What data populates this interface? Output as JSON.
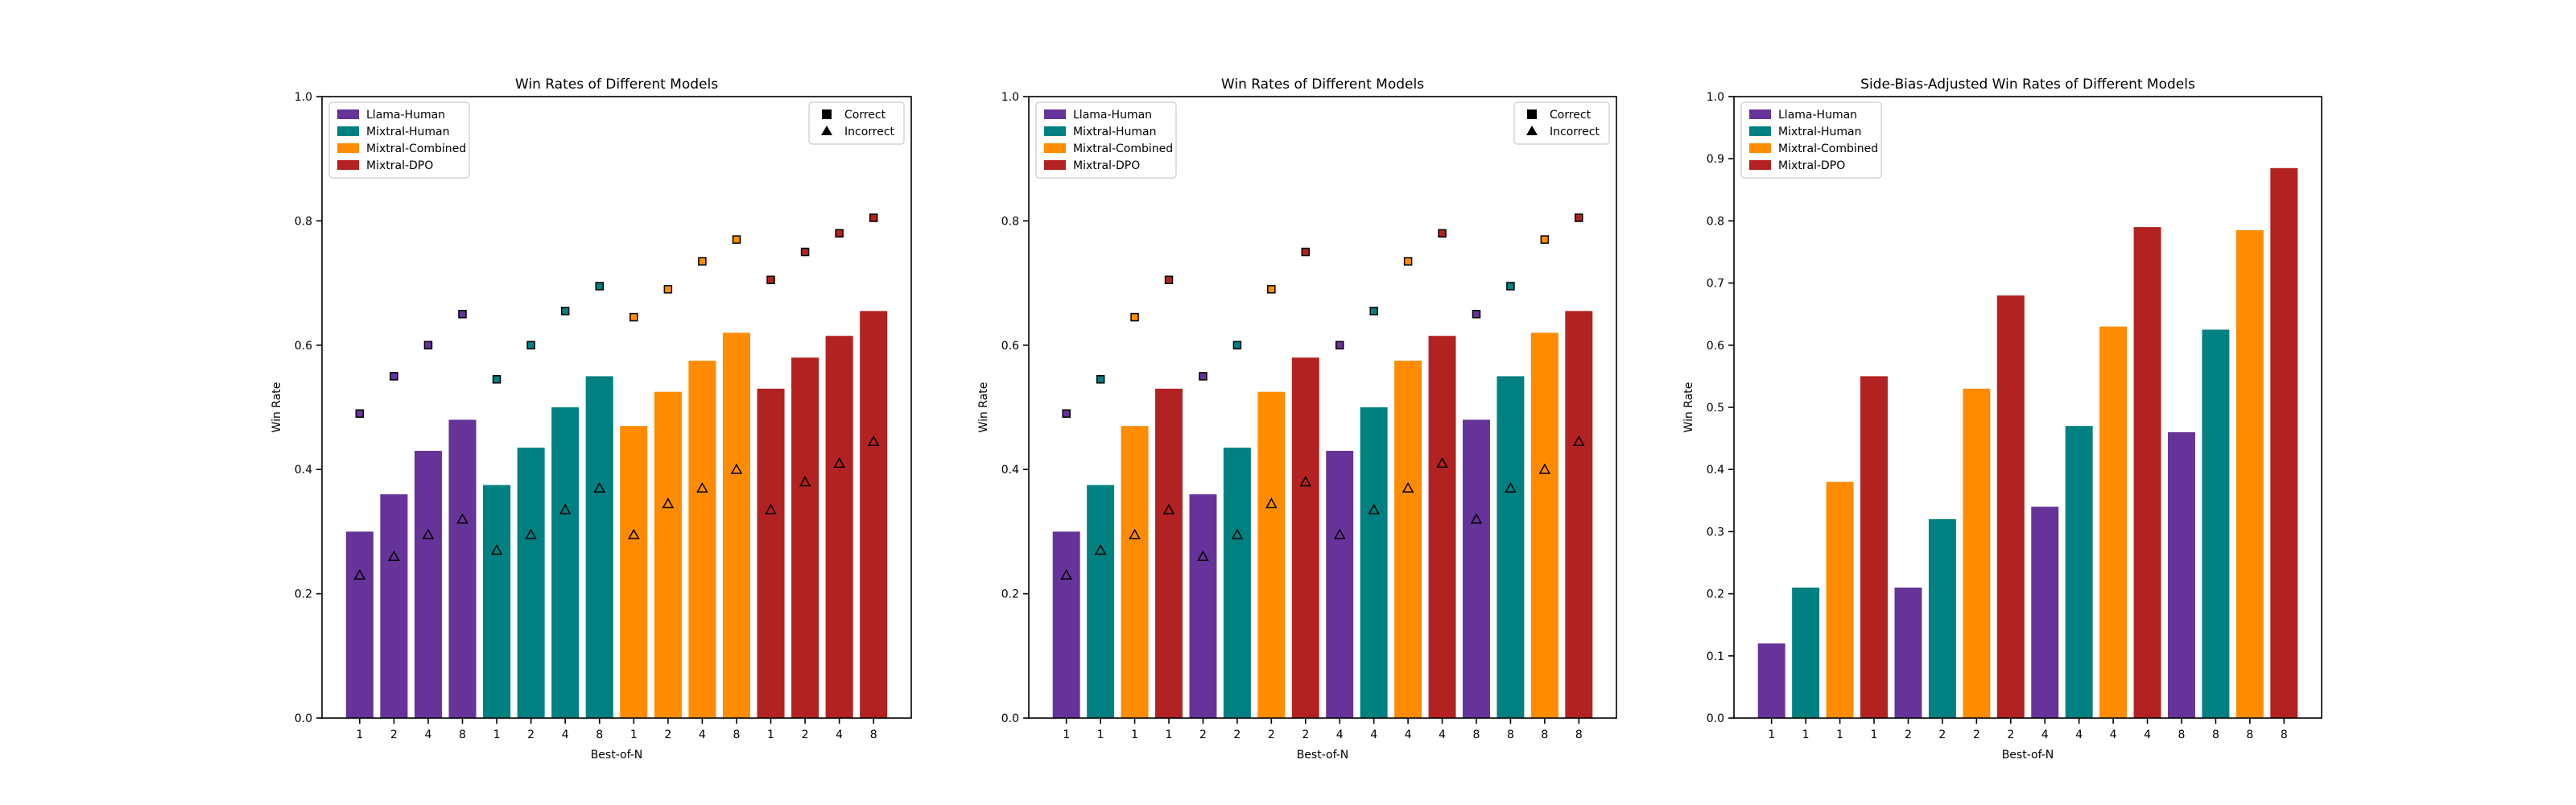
{
  "colors": {
    "llama_human": "#663399",
    "mixtral_human": "#008080",
    "mixtral_combined": "#ff8c00",
    "mixtral_dpo": "#b22222"
  },
  "chart_data": [
    {
      "type": "bar",
      "title": "Win Rates of Different Models",
      "xlabel": "Best-of-N",
      "ylabel": "Win Rate",
      "ylim": [
        0,
        1.0
      ],
      "yticks": [
        "0.0",
        "0.2",
        "0.4",
        "0.6",
        "0.8",
        "1.0"
      ],
      "grid": false,
      "legend_position": "top-left",
      "marker_legend_position": "top-right",
      "markers_legend": [
        {
          "label": "Correct",
          "icon": "square-marker-icon"
        },
        {
          "label": "Incorrect",
          "icon": "triangle-marker-icon"
        }
      ],
      "series_legend": [
        {
          "name": "Llama-Human",
          "color": "#663399"
        },
        {
          "name": "Mixtral-Human",
          "color": "#008080"
        },
        {
          "name": "Mixtral-Combined",
          "color": "#ff8c00"
        },
        {
          "name": "Mixtral-DPO",
          "color": "#b22222"
        }
      ],
      "categories": [
        "1",
        "2",
        "4",
        "8",
        "1",
        "2",
        "4",
        "8",
        "1",
        "2",
        "4",
        "8",
        "1",
        "2",
        "4",
        "8"
      ],
      "bar_series": [
        0,
        0,
        0,
        0,
        1,
        1,
        1,
        1,
        2,
        2,
        2,
        2,
        3,
        3,
        3,
        3
      ],
      "values": [
        0.3,
        0.36,
        0.43,
        0.48,
        0.375,
        0.435,
        0.5,
        0.55,
        0.47,
        0.525,
        0.575,
        0.62,
        0.53,
        0.58,
        0.615,
        0.655
      ],
      "correct": [
        0.49,
        0.55,
        0.6,
        0.65,
        0.545,
        0.6,
        0.655,
        0.695,
        0.645,
        0.69,
        0.735,
        0.77,
        0.705,
        0.75,
        0.78,
        0.805
      ],
      "incorrect": [
        0.23,
        0.26,
        0.295,
        0.32,
        0.27,
        0.295,
        0.335,
        0.37,
        0.295,
        0.345,
        0.37,
        0.4,
        0.335,
        0.38,
        0.41,
        0.445
      ]
    },
    {
      "type": "bar",
      "title": "Win Rates of Different Models",
      "xlabel": "Best-of-N",
      "ylabel": "Win Rate",
      "ylim": [
        0,
        1.0
      ],
      "yticks": [
        "0.0",
        "0.2",
        "0.4",
        "0.6",
        "0.8",
        "1.0"
      ],
      "grid": false,
      "legend_position": "top-left",
      "marker_legend_position": "top-right",
      "markers_legend": [
        {
          "label": "Correct",
          "icon": "square-marker-icon"
        },
        {
          "label": "Incorrect",
          "icon": "triangle-marker-icon"
        }
      ],
      "series_legend": [
        {
          "name": "Llama-Human",
          "color": "#663399"
        },
        {
          "name": "Mixtral-Human",
          "color": "#008080"
        },
        {
          "name": "Mixtral-Combined",
          "color": "#ff8c00"
        },
        {
          "name": "Mixtral-DPO",
          "color": "#b22222"
        }
      ],
      "categories": [
        "1",
        "1",
        "1",
        "1",
        "2",
        "2",
        "2",
        "2",
        "4",
        "4",
        "4",
        "4",
        "8",
        "8",
        "8",
        "8"
      ],
      "bar_series": [
        0,
        1,
        2,
        3,
        0,
        1,
        2,
        3,
        0,
        1,
        2,
        3,
        0,
        1,
        2,
        3
      ],
      "values": [
        0.3,
        0.375,
        0.47,
        0.53,
        0.36,
        0.435,
        0.525,
        0.58,
        0.43,
        0.5,
        0.575,
        0.615,
        0.48,
        0.55,
        0.62,
        0.655
      ],
      "correct": [
        0.49,
        0.545,
        0.645,
        0.705,
        0.55,
        0.6,
        0.69,
        0.75,
        0.6,
        0.655,
        0.735,
        0.78,
        0.65,
        0.695,
        0.77,
        0.805
      ],
      "incorrect": [
        0.23,
        0.27,
        0.295,
        0.335,
        0.26,
        0.295,
        0.345,
        0.38,
        0.295,
        0.335,
        0.37,
        0.41,
        0.32,
        0.37,
        0.4,
        0.445
      ]
    },
    {
      "type": "bar",
      "title": "Side-Bias-Adjusted Win Rates of Different Models",
      "xlabel": "Best-of-N",
      "ylabel": "Win Rate",
      "ylim": [
        0,
        1.0
      ],
      "yticks": [
        "0.0",
        "0.1",
        "0.2",
        "0.3",
        "0.4",
        "0.5",
        "0.6",
        "0.7",
        "0.8",
        "0.9",
        "1.0"
      ],
      "grid": false,
      "legend_position": "top-left",
      "series_legend": [
        {
          "name": "Llama-Human",
          "color": "#663399"
        },
        {
          "name": "Mixtral-Human",
          "color": "#008080"
        },
        {
          "name": "Mixtral-Combined",
          "color": "#ff8c00"
        },
        {
          "name": "Mixtral-DPO",
          "color": "#b22222"
        }
      ],
      "categories": [
        "1",
        "1",
        "1",
        "1",
        "2",
        "2",
        "2",
        "2",
        "4",
        "4",
        "4",
        "4",
        "8",
        "8",
        "8",
        "8"
      ],
      "bar_series": [
        0,
        1,
        2,
        3,
        0,
        1,
        2,
        3,
        0,
        1,
        2,
        3,
        0,
        1,
        2,
        3
      ],
      "values": [
        0.12,
        0.21,
        0.38,
        0.55,
        0.21,
        0.32,
        0.53,
        0.68,
        0.34,
        0.47,
        0.63,
        0.79,
        0.46,
        0.625,
        0.785,
        0.885
      ]
    }
  ]
}
